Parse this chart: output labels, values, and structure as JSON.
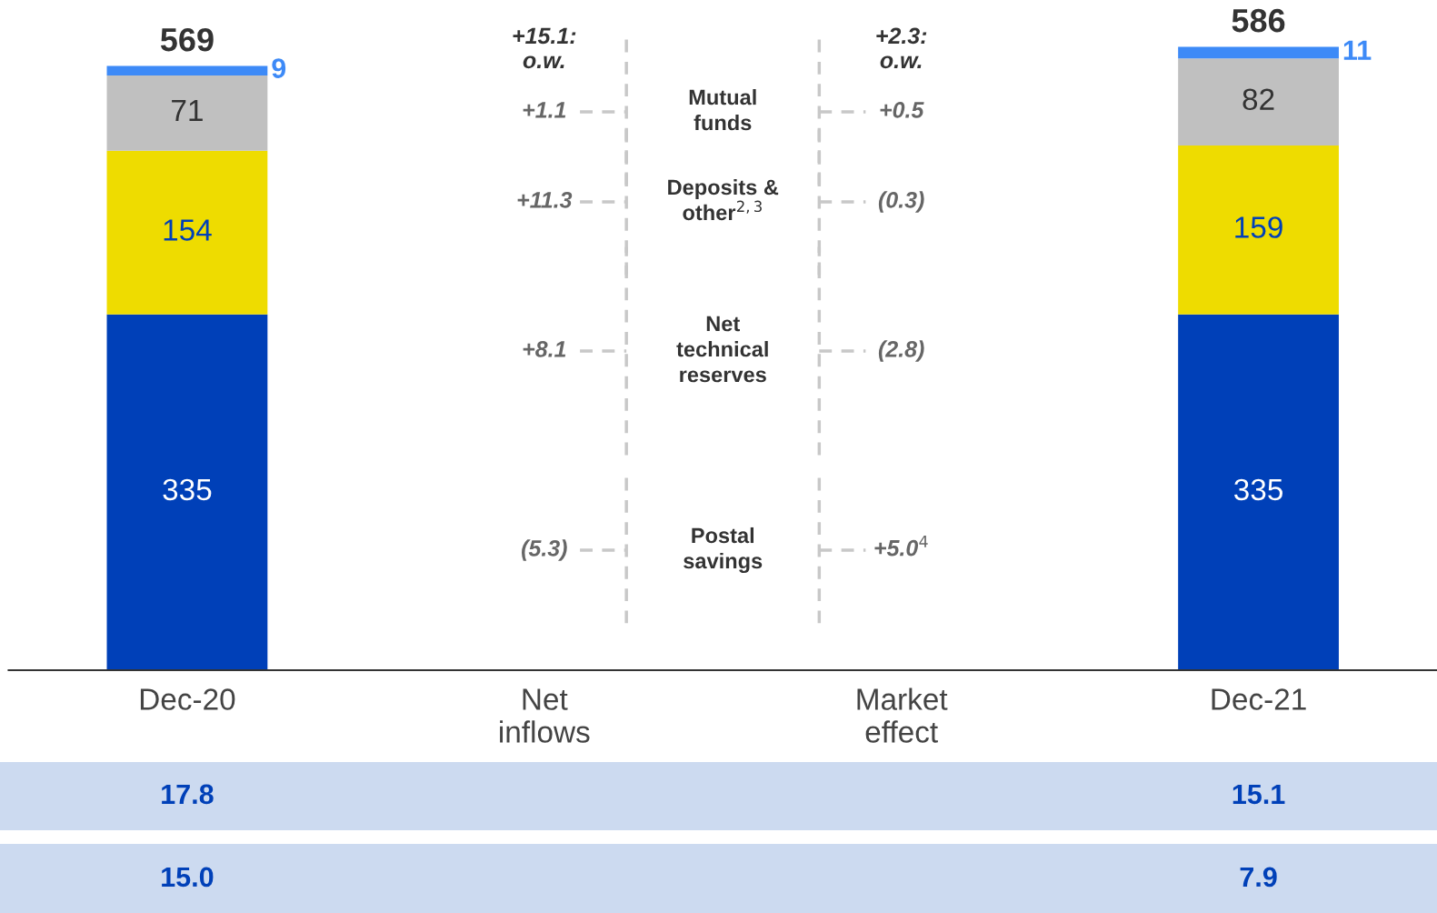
{
  "chart_data": {
    "type": "bar",
    "stacked": true,
    "data_labels": true,
    "categories": [
      "Dec-20",
      "Net\ninflows",
      "Market\neffect",
      "Dec-21"
    ],
    "series": [
      {
        "color": "#0040b8",
        "values": [
          335,
          null,
          null,
          335
        ]
      },
      {
        "color": "#eedc00",
        "values": [
          154,
          null,
          null,
          159
        ]
      },
      {
        "color": "#c0c0c0",
        "values": [
          71,
          null,
          null,
          82
        ]
      },
      {
        "color": "#3d8af7",
        "values": [
          9,
          null,
          null,
          11
        ]
      }
    ],
    "totals": [
      "569",
      null,
      null,
      "586"
    ],
    "annotations": [
      "+15.1:\no.w.",
      "+2.3:\no.w.",
      "+1.1",
      "+0.5",
      "+11.3",
      "(0.3)",
      "+8.1",
      "(2.8)",
      "(5.3)",
      "+5.0$^{4}$",
      "17.8",
      "15.1",
      "15.0",
      "7.9",
      "Mutual\nfunds",
      "Deposits &\nother$^{2,3}$",
      "Net\ntechnical\nreserves",
      "Postal\nsavings"
    ]
  }
}
